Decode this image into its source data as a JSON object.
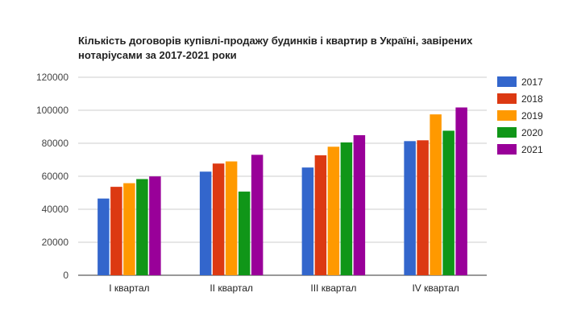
{
  "chart_data": {
    "type": "bar",
    "title_lines": [
      "Кількість договорів купівлі-продажу будинків і квартир в Україні, завірених",
      "нотаріусами за 2017-2021 роки"
    ],
    "categories": [
      "I квартал",
      "II квартал",
      "III квартал",
      "IV квартал"
    ],
    "series": [
      {
        "name": "2017",
        "color": "#3366cc",
        "values": [
          46500,
          62800,
          65300,
          81300
        ]
      },
      {
        "name": "2018",
        "color": "#dc3912",
        "values": [
          53600,
          67700,
          72700,
          81800
        ]
      },
      {
        "name": "2019",
        "color": "#ff9900",
        "values": [
          55800,
          69000,
          77900,
          97500
        ]
      },
      {
        "name": "2020",
        "color": "#109618",
        "values": [
          58300,
          50700,
          80500,
          87600
        ]
      },
      {
        "name": "2021",
        "color": "#990099",
        "values": [
          59900,
          73000,
          84900,
          101700
        ]
      }
    ],
    "ylim": [
      0,
      120000
    ],
    "yticks": [
      "0",
      "20000",
      "40000",
      "60000",
      "80000",
      "100000",
      "120000"
    ],
    "grid": true,
    "legend": "right"
  }
}
